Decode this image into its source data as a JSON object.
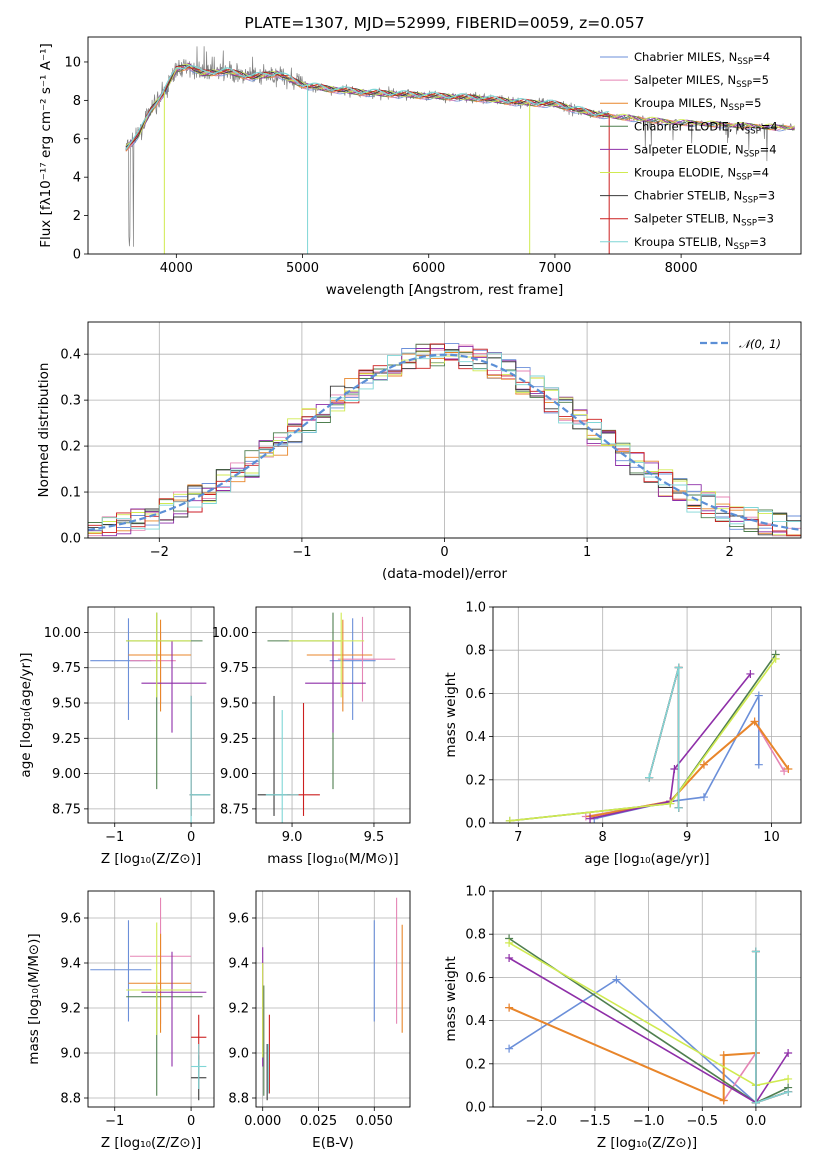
{
  "colors": {
    "chabrier_miles": "#6b8fd9",
    "salpeter_miles": "#e585b5",
    "kroupa_miles": "#e8862a",
    "chabrier_elodie": "#4f7f4f",
    "salpeter_elodie": "#8e2fa8",
    "kroupa_elodie": "#d0ea50",
    "chabrier_stelib": "#3a3a3a",
    "salpeter_stelib": "#cc1f1f",
    "kroupa_stelib": "#7fd6d6",
    "observed": "#808080",
    "normal": "#5b8fd6"
  },
  "chart_data": [
    {
      "type": "line",
      "title": "PLATE=1307, MJD=52999, FIBERID=0059, z=0.057",
      "xlabel": "wavelength [Angstrom, rest frame]",
      "ylabel": "Flux [fλ10⁻¹⁷ erg cm⁻² s⁻¹ A⁻¹]",
      "xlim": [
        3300,
        8950
      ],
      "ylim": [
        0,
        11.3
      ],
      "xticks": [
        "4000",
        "5000",
        "6000",
        "7000",
        "8000"
      ],
      "yticks": [
        "0",
        "2",
        "4",
        "6",
        "8",
        "10"
      ],
      "legend_placement": "top-right",
      "legend": [
        {
          "model": "chabrier_miles",
          "label": "Chabrier MILES, N",
          "sub": "SSP",
          "tail": "=4"
        },
        {
          "model": "salpeter_miles",
          "label": "Salpeter MILES, N",
          "sub": "SSP",
          "tail": "=5"
        },
        {
          "model": "kroupa_miles",
          "label": "Kroupa MILES, N",
          "sub": "SSP",
          "tail": "=5"
        },
        {
          "model": "chabrier_elodie",
          "label": "Chabrier ELODIE, N",
          "sub": "SSP",
          "tail": "=4"
        },
        {
          "model": "salpeter_elodie",
          "label": "Salpeter ELODIE, N",
          "sub": "SSP",
          "tail": "=4"
        },
        {
          "model": "kroupa_elodie",
          "label": "Kroupa ELODIE, N",
          "sub": "SSP",
          "tail": "=4"
        },
        {
          "model": "chabrier_stelib",
          "label": "Chabrier STELIB, N",
          "sub": "SSP",
          "tail": "=3"
        },
        {
          "model": "salpeter_stelib",
          "label": "Salpeter STELIB, N",
          "sub": "SSP",
          "tail": "=3"
        },
        {
          "model": "kroupa_stelib",
          "label": "Kroupa STELIB, N",
          "sub": "SSP",
          "tail": "=3"
        }
      ],
      "continuum": {
        "x": [
          3600,
          3700,
          3800,
          3900,
          4000,
          4100,
          4200,
          4400,
          4600,
          4800,
          5000,
          5200,
          5500,
          5800,
          6100,
          6400,
          6700,
          7000,
          7300,
          7600,
          7900,
          8200,
          8500,
          8800
        ],
        "y": [
          5.5,
          6.2,
          7.5,
          8.4,
          9.6,
          9.8,
          9.4,
          9.5,
          9.2,
          9.4,
          8.8,
          8.6,
          8.4,
          8.3,
          8.2,
          8.1,
          7.9,
          7.8,
          7.3,
          7.1,
          6.9,
          6.8,
          6.7,
          6.6
        ]
      }
    },
    {
      "type": "step",
      "xlabel": "(data-model)/error",
      "ylabel": "Normed distribution",
      "xlim": [
        -2.5,
        2.5
      ],
      "ylim": [
        0,
        0.47
      ],
      "xticks": [
        "−2",
        "−1",
        "0",
        "1",
        "2"
      ],
      "yticks": [
        "0.0",
        "0.1",
        "0.2",
        "0.3",
        "0.4"
      ],
      "bin_width": 0.1,
      "legend_placement": "top-right",
      "legend_label": "𝒩(0, 1)",
      "normal_curve": {
        "mean": 0,
        "sigma": 1
      }
    },
    {
      "type": "errorbar",
      "xlabel": "Z [log₁₀(Z/Z⊙)]",
      "ylabel": "age  [log₁₀(age/yr)]",
      "xlim": [
        -1.35,
        0.3
      ],
      "ylim": [
        8.65,
        10.18
      ],
      "xticks": [
        "−1",
        "0"
      ],
      "yticks": [
        "8.75",
        "9.00",
        "9.25",
        "9.50",
        "9.75",
        "10.00"
      ],
      "points": [
        {
          "model": "chabrier_miles",
          "x": -0.82,
          "y": 9.8,
          "xerr": [
            0.5,
            0.3
          ],
          "yerr": [
            0.42,
            0.3
          ]
        },
        {
          "model": "salpeter_miles",
          "x": -0.4,
          "y": 9.8,
          "xerr": [
            0.4,
            0.2
          ],
          "yerr": [
            0.3,
            0.2
          ]
        },
        {
          "model": "kroupa_miles",
          "x": -0.4,
          "y": 9.84,
          "xerr": [
            0.42,
            0.4
          ],
          "yerr": [
            0.4,
            0.25
          ]
        },
        {
          "model": "chabrier_elodie",
          "x": -0.45,
          "y": 9.94,
          "xerr": [
            0.4,
            0.6
          ],
          "yerr": [
            1.05,
            0.2
          ]
        },
        {
          "model": "salpeter_elodie",
          "x": -0.25,
          "y": 9.64,
          "xerr": [
            0.4,
            0.45
          ],
          "yerr": [
            0.35,
            0.3
          ]
        },
        {
          "model": "kroupa_elodie",
          "x": -0.45,
          "y": 9.94,
          "xerr": [
            0.4,
            0.45
          ],
          "yerr": [
            0.4,
            0.2
          ]
        },
        {
          "model": "chabrier_stelib",
          "x": 0.0,
          "y": 8.85,
          "xerr": [
            0.02,
            0.25
          ],
          "yerr": [
            0.15,
            0.7
          ]
        },
        {
          "model": "salpeter_stelib",
          "x": 0.0,
          "y": 8.85,
          "xerr": [
            0.02,
            0.02
          ],
          "yerr": [
            0.15,
            0.7
          ]
        },
        {
          "model": "kroupa_stelib",
          "x": 0.0,
          "y": 8.85,
          "xerr": [
            0.02,
            0.25
          ],
          "yerr": [
            0.2,
            0.7
          ]
        }
      ]
    },
    {
      "type": "errorbar",
      "xlabel": "mass [log₁₀(M/M⊙)]",
      "ylabel": "",
      "xlim": [
        8.78,
        9.72
      ],
      "ylim": [
        8.65,
        10.18
      ],
      "xticks": [
        "9.0",
        "9.5"
      ],
      "yticks": [
        "8.75",
        "9.00",
        "9.25",
        "9.50",
        "9.75",
        "10.00"
      ],
      "points": [
        {
          "model": "chabrier_miles",
          "x": 9.37,
          "y": 9.8,
          "xerr": [
            0.14,
            0.14
          ],
          "yerr": [
            0.42,
            0.3
          ]
        },
        {
          "model": "salpeter_miles",
          "x": 9.43,
          "y": 9.81,
          "xerr": [
            0.15,
            0.2
          ],
          "yerr": [
            0.3,
            0.3
          ]
        },
        {
          "model": "kroupa_miles",
          "x": 9.31,
          "y": 9.84,
          "xerr": [
            0.22,
            0.18
          ],
          "yerr": [
            0.4,
            0.25
          ]
        },
        {
          "model": "chabrier_elodie",
          "x": 9.25,
          "y": 9.94,
          "xerr": [
            0.4,
            0.05
          ],
          "yerr": [
            1.05,
            0.2
          ]
        },
        {
          "model": "salpeter_elodie",
          "x": 9.25,
          "y": 9.64,
          "xerr": [
            0.17,
            0.2
          ],
          "yerr": [
            0.35,
            0.3
          ]
        },
        {
          "model": "kroupa_elodie",
          "x": 9.3,
          "y": 9.94,
          "xerr": [
            0.32,
            0.14
          ],
          "yerr": [
            0.4,
            0.2
          ]
        },
        {
          "model": "chabrier_stelib",
          "x": 8.89,
          "y": 8.85,
          "xerr": [
            0.1,
            0.1
          ],
          "yerr": [
            0.15,
            0.7
          ]
        },
        {
          "model": "salpeter_stelib",
          "x": 9.07,
          "y": 8.85,
          "xerr": [
            0.1,
            0.1
          ],
          "yerr": [
            0.15,
            0.65
          ]
        },
        {
          "model": "kroupa_stelib",
          "x": 8.94,
          "y": 8.85,
          "xerr": [
            0.1,
            0.1
          ],
          "yerr": [
            0.2,
            0.6
          ]
        }
      ]
    },
    {
      "type": "line",
      "xlabel": "age  [log₁₀(age/yr)]",
      "ylabel": "mass weight",
      "xlim": [
        6.7,
        10.35
      ],
      "ylim": [
        0,
        1.0
      ],
      "xticks": [
        "7",
        "8",
        "9",
        "10"
      ],
      "yticks": [
        "0.0",
        "0.2",
        "0.4",
        "0.6",
        "0.8",
        "1.0"
      ],
      "series": [
        {
          "model": "chabrier_miles",
          "x": [
            7.9,
            8.8,
            9.2,
            9.85,
            9.85
          ],
          "y": [
            0.02,
            0.1,
            0.12,
            0.59,
            0.27
          ]
        },
        {
          "model": "salpeter_miles",
          "x": [
            7.8,
            8.8,
            9.2,
            9.8,
            10.15
          ],
          "y": [
            0.03,
            0.1,
            0.27,
            0.47,
            0.24
          ]
        },
        {
          "model": "kroupa_miles",
          "x": [
            7.85,
            8.8,
            9.2,
            9.8,
            10.2
          ],
          "y": [
            0.03,
            0.1,
            0.27,
            0.47,
            0.25
          ]
        },
        {
          "model": "chabrier_elodie",
          "x": [
            6.9,
            8.8,
            10.05
          ],
          "y": [
            0.01,
            0.09,
            0.78
          ]
        },
        {
          "model": "salpeter_elodie",
          "x": [
            7.85,
            8.8,
            8.85,
            9.75
          ],
          "y": [
            0.02,
            0.1,
            0.25,
            0.69
          ]
        },
        {
          "model": "kroupa_elodie",
          "x": [
            6.9,
            8.8,
            10.05
          ],
          "y": [
            0.01,
            0.09,
            0.76
          ]
        },
        {
          "model": "chabrier_stelib",
          "x": [
            8.55,
            8.9,
            8.9
          ],
          "y": [
            0.21,
            0.72,
            0.07
          ]
        },
        {
          "model": "salpeter_stelib",
          "x": [
            8.55,
            8.9,
            8.9
          ],
          "y": [
            0.21,
            0.72,
            0.07
          ]
        },
        {
          "model": "kroupa_stelib",
          "x": [
            8.55,
            8.9,
            8.9
          ],
          "y": [
            0.21,
            0.72,
            0.07
          ]
        }
      ]
    },
    {
      "type": "errorbar",
      "xlabel": "Z [log₁₀(Z/Z⊙)]",
      "ylabel": "mass [log₁₀(M/M⊙)]",
      "xlim": [
        -1.35,
        0.3
      ],
      "ylim": [
        8.76,
        9.72
      ],
      "xticks": [
        "−1",
        "0"
      ],
      "yticks": [
        "8.8",
        "9.0",
        "9.2",
        "9.4",
        "9.6"
      ],
      "points": [
        {
          "model": "chabrier_miles",
          "x": -0.82,
          "y": 9.37,
          "xerr": [
            0.5,
            0.3
          ],
          "yerr": [
            0.23,
            0.22
          ]
        },
        {
          "model": "salpeter_miles",
          "x": -0.4,
          "y": 9.43,
          "xerr": [
            0.4,
            0.4
          ],
          "yerr": [
            0.3,
            0.26
          ]
        },
        {
          "model": "kroupa_miles",
          "x": -0.4,
          "y": 9.31,
          "xerr": [
            0.42,
            0.4
          ],
          "yerr": [
            0.22,
            0.22
          ]
        },
        {
          "model": "chabrier_elodie",
          "x": -0.45,
          "y": 9.25,
          "xerr": [
            0.4,
            0.6
          ],
          "yerr": [
            0.44,
            0.05
          ]
        },
        {
          "model": "salpeter_elodie",
          "x": -0.25,
          "y": 9.27,
          "xerr": [
            0.4,
            0.45
          ],
          "yerr": [
            0.33,
            0.18
          ]
        },
        {
          "model": "kroupa_elodie",
          "x": -0.45,
          "y": 9.28,
          "xerr": [
            0.4,
            0.45
          ],
          "yerr": [
            0.2,
            0.3
          ]
        },
        {
          "model": "chabrier_stelib",
          "x": 0.1,
          "y": 8.89,
          "xerr": [
            0.1,
            0.1
          ],
          "yerr": [
            0.1,
            0.1
          ]
        },
        {
          "model": "salpeter_stelib",
          "x": 0.1,
          "y": 9.07,
          "xerr": [
            0.1,
            0.1
          ],
          "yerr": [
            0.1,
            0.1
          ]
        },
        {
          "model": "kroupa_stelib",
          "x": 0.1,
          "y": 8.94,
          "xerr": [
            0.1,
            0.1
          ],
          "yerr": [
            0.1,
            0.1
          ]
        }
      ]
    },
    {
      "type": "errorbar",
      "xlabel": "E(B-V)",
      "ylabel": "",
      "xlim": [
        -0.003,
        0.066
      ],
      "ylim": [
        8.76,
        9.72
      ],
      "xticks": [
        "0.000",
        "0.025",
        "0.050"
      ],
      "yticks": [
        "8.8",
        "9.0",
        "9.2",
        "9.4",
        "9.6"
      ],
      "points": [
        {
          "model": "chabrier_miles",
          "x": 0.05,
          "y": 9.37,
          "xerr": [
            0,
            0
          ],
          "yerr": [
            0.23,
            0.22
          ]
        },
        {
          "model": "salpeter_miles",
          "x": 0.06,
          "y": 9.43,
          "xerr": [
            0,
            0
          ],
          "yerr": [
            0.3,
            0.26
          ]
        },
        {
          "model": "kroupa_miles",
          "x": 0.0625,
          "y": 9.31,
          "xerr": [
            0,
            0
          ],
          "yerr": [
            0.22,
            0.26
          ]
        },
        {
          "model": "chabrier_elodie",
          "x": 0.0005,
          "y": 9.25,
          "xerr": [
            0,
            0
          ],
          "yerr": [
            0.44,
            0.05
          ]
        },
        {
          "model": "salpeter_elodie",
          "x": 0.0,
          "y": 9.27,
          "xerr": [
            0,
            0
          ],
          "yerr": [
            0.33,
            0.2
          ]
        },
        {
          "model": "kroupa_elodie",
          "x": 0.0,
          "y": 9.28,
          "xerr": [
            0,
            0
          ],
          "yerr": [
            0.3,
            0.12
          ]
        },
        {
          "model": "chabrier_stelib",
          "x": 0.002,
          "y": 8.89,
          "xerr": [
            0,
            0
          ],
          "yerr": [
            0.1,
            0.15
          ]
        },
        {
          "model": "salpeter_stelib",
          "x": 0.003,
          "y": 9.07,
          "xerr": [
            0,
            0
          ],
          "yerr": [
            0.25,
            0.1
          ]
        },
        {
          "model": "kroupa_stelib",
          "x": 0.0025,
          "y": 8.94,
          "xerr": [
            0,
            0
          ],
          "yerr": [
            0.12,
            0.1
          ]
        }
      ]
    },
    {
      "type": "line",
      "xlabel": "Z [log₁₀(Z/Z⊙)]",
      "ylabel": "mass weight",
      "xlim": [
        -2.45,
        0.42
      ],
      "ylim": [
        0,
        1.0
      ],
      "xticks": [
        "−2.0",
        "−1.5",
        "−1.0",
        "−0.5",
        "0.0"
      ],
      "yticks": [
        "0.0",
        "0.2",
        "0.4",
        "0.6",
        "0.8",
        "1.0"
      ],
      "series": [
        {
          "model": "chabrier_miles",
          "x": [
            -2.3,
            -1.3,
            0.0,
            0.0
          ],
          "y": [
            0.27,
            0.59,
            0.02,
            0.1
          ]
        },
        {
          "model": "salpeter_miles",
          "x": [
            -2.3,
            -0.3,
            0.0,
            0.0
          ],
          "y": [
            0.46,
            0.03,
            0.25,
            0.25
          ]
        },
        {
          "model": "kroupa_miles",
          "x": [
            -2.3,
            -0.3,
            -0.3,
            0.0
          ],
          "y": [
            0.46,
            0.03,
            0.24,
            0.25
          ]
        },
        {
          "model": "chabrier_elodie",
          "x": [
            -2.3,
            0.0,
            0.3
          ],
          "y": [
            0.78,
            0.02,
            0.09
          ]
        },
        {
          "model": "salpeter_elodie",
          "x": [
            -2.3,
            0.0,
            0.3
          ],
          "y": [
            0.69,
            0.02,
            0.25
          ]
        },
        {
          "model": "kroupa_elodie",
          "x": [
            -2.3,
            0.0,
            0.3
          ],
          "y": [
            0.76,
            0.1,
            0.13
          ]
        },
        {
          "model": "chabrier_stelib",
          "x": [
            0.0,
            0.0,
            0.3
          ],
          "y": [
            0.72,
            0.02,
            0.07
          ]
        },
        {
          "model": "salpeter_stelib",
          "x": [
            0.0,
            0.0,
            0.3
          ],
          "y": [
            0.72,
            0.02,
            0.07
          ]
        },
        {
          "model": "kroupa_stelib",
          "x": [
            0.0,
            0.0,
            0.3
          ],
          "y": [
            0.72,
            0.02,
            0.07
          ]
        }
      ]
    }
  ]
}
